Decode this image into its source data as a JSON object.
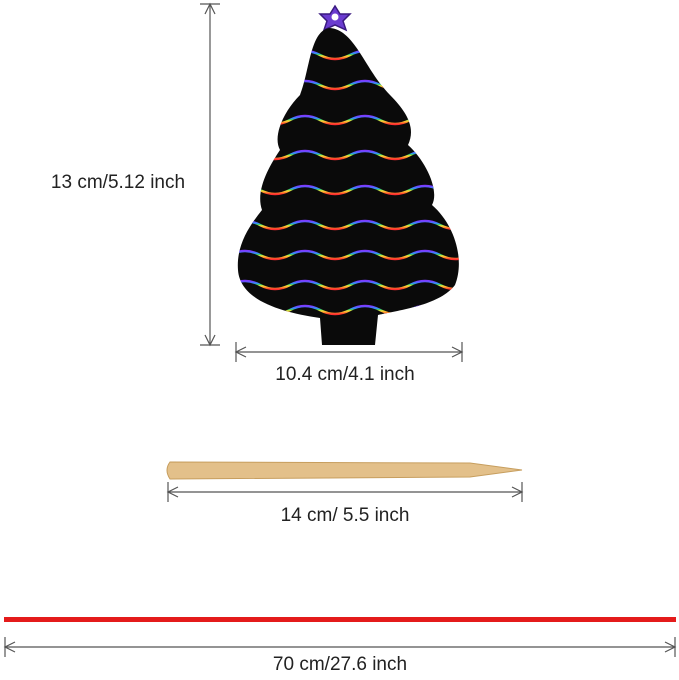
{
  "tree_height": "13 cm/5.12 inch",
  "tree_width": "10.4 cm/4.1 inch",
  "stick_length": "14 cm/ 5.5 inch",
  "ribbon_length": "70 cm/27.6 inch"
}
